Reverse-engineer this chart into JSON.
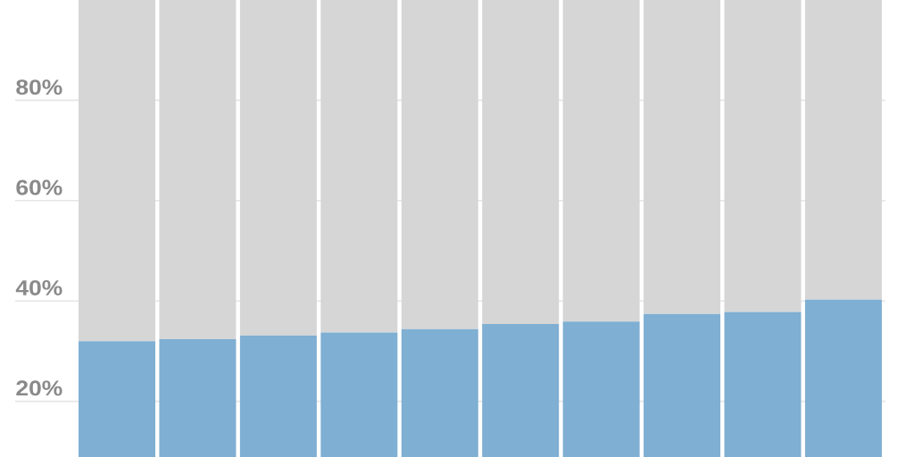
{
  "chart_data": {
    "type": "bar",
    "stacked": true,
    "categories": [
      null,
      null,
      null,
      null,
      null,
      null,
      null,
      null,
      null,
      null
    ],
    "series": [
      {
        "color": "#7fafd2",
        "values": [
          32.0,
          32.4,
          33.1,
          33.7,
          34.4,
          35.4,
          35.9,
          37.4,
          37.8,
          40.3
        ]
      },
      {
        "color": "#d6d6d6",
        "values": [
          68.0,
          67.6,
          66.9,
          66.3,
          65.6,
          64.6,
          64.1,
          62.6,
          62.2,
          59.7
        ]
      }
    ],
    "ylim": [
      8.9,
      100
    ],
    "yticks": [
      {
        "value": 20,
        "label": "20%"
      },
      {
        "value": 40,
        "label": "40%"
      },
      {
        "value": 60,
        "label": "60%"
      },
      {
        "value": 80,
        "label": "80%"
      }
    ],
    "grid": "y"
  }
}
